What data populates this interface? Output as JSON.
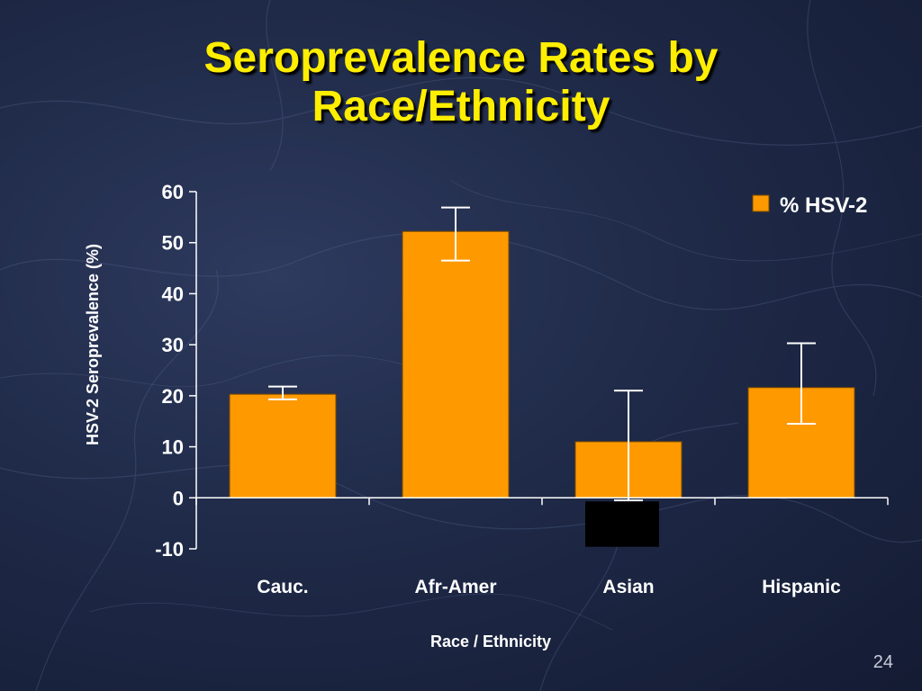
{
  "slide": {
    "title_line1": "Seroprevalence Rates by",
    "title_line2": "Race/Ethnicity",
    "number": "24"
  },
  "colors": {
    "bar": "#ff9900",
    "title": "#ffee00",
    "axis_text": "#ffffff",
    "asian_low_block": "#000000"
  },
  "chart_data": {
    "type": "bar",
    "categories": [
      "Cauc.",
      "Afr-Amer",
      "Asian",
      "Hispanic"
    ],
    "series": [
      {
        "name": "% HSV-2",
        "values": [
          20.3,
          52.2,
          11,
          21.6
        ],
        "error_low": [
          19.3,
          46.5,
          -0.5,
          14.5
        ],
        "error_high": [
          21.8,
          56.9,
          21,
          30.3
        ]
      }
    ],
    "xlabel": "Race / Ethnicity",
    "ylabel": "HSV-2 Seroprevalence  (%)",
    "ylim": [
      -10,
      60
    ],
    "yticks": [
      60,
      50,
      40,
      30,
      20,
      10,
      0,
      -10
    ],
    "legend_position": "top-right",
    "grid": false,
    "asian_negative_block": [
      0,
      -9.6
    ]
  }
}
